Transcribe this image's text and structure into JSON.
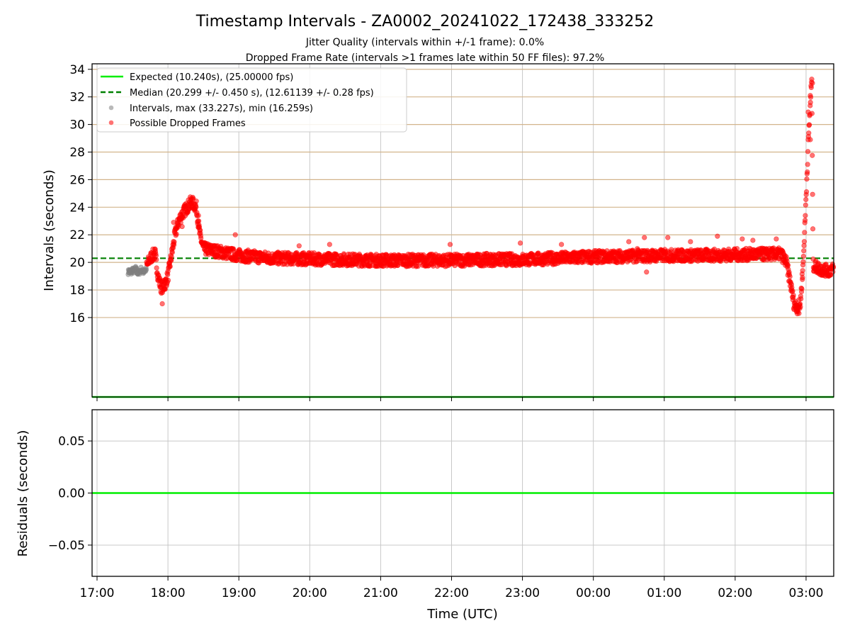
{
  "title": "Timestamp Intervals - ZA0002_20241022_172438_333252",
  "subtitle_1": "Jitter Quality (intervals within +/-1 frame): 0.0%",
  "subtitle_2": "Dropped Frame Rate (intervals >1 frames late within 50 FF files): 97.2%",
  "colors": {
    "expected": "#00ee00",
    "median": "#008000",
    "intervals": "#808080",
    "dropped": "#ff0000",
    "h_grid_top": "#d2b48c",
    "grid": "#c8c8c8"
  },
  "chart_data": [
    {
      "type": "scatter",
      "ylabel": "Intervals (seconds)",
      "x_unit": "hours after 17:00 UTC",
      "xlim": [
        -0.07,
        10.39
      ],
      "ylim": [
        10.24,
        34.4
      ],
      "yticks": [
        16,
        18,
        20,
        22,
        24,
        26,
        28,
        30,
        32,
        34
      ],
      "grid": "horizontal tan + vertical grey",
      "legend_position": "top-left",
      "expected_value": 10.24,
      "median_value": 20.299,
      "legend": [
        "Expected (10.240s), (25.00000 fps)",
        "Median (20.299 +/- 0.450 s), (12.61139 +/- 0.28 fps)",
        "Intervals, max (33.227s), min (16.259s)",
        "Possible Dropped Frames"
      ],
      "intervals_gray": [
        [
          0.44,
          19.3
        ],
        [
          0.46,
          19.4
        ],
        [
          0.48,
          19.2
        ],
        [
          0.5,
          19.5
        ],
        [
          0.52,
          19.3
        ],
        [
          0.55,
          19.6
        ],
        [
          0.57,
          19.2
        ],
        [
          0.6,
          19.3
        ],
        [
          0.62,
          19.5
        ],
        [
          0.65,
          19.3
        ],
        [
          0.67,
          19.4
        ],
        [
          0.7,
          19.5
        ]
      ],
      "dropped_trend": [
        [
          0.7,
          19.7
        ],
        [
          0.74,
          20.2
        ],
        [
          0.78,
          20.5
        ],
        [
          0.82,
          20.6
        ],
        [
          0.86,
          19.0
        ],
        [
          0.9,
          18.2
        ],
        [
          0.95,
          18.3
        ],
        [
          1.0,
          19.0
        ],
        [
          1.05,
          20.5
        ],
        [
          1.1,
          22.0
        ],
        [
          1.15,
          23.0
        ],
        [
          1.2,
          23.5
        ],
        [
          1.27,
          24.0
        ],
        [
          1.33,
          24.4
        ],
        [
          1.4,
          24.0
        ],
        [
          1.45,
          22.0
        ],
        [
          1.5,
          21.0
        ],
        [
          1.6,
          20.9
        ],
        [
          1.7,
          20.8
        ],
        [
          1.8,
          20.7
        ],
        [
          1.9,
          20.6
        ],
        [
          2.0,
          20.5
        ],
        [
          2.5,
          20.3
        ],
        [
          3.0,
          20.25
        ],
        [
          3.5,
          20.2
        ],
        [
          4.0,
          20.15
        ],
        [
          4.5,
          20.15
        ],
        [
          5.0,
          20.15
        ],
        [
          5.5,
          20.2
        ],
        [
          6.0,
          20.2
        ],
        [
          6.5,
          20.3
        ],
        [
          7.0,
          20.4
        ],
        [
          7.5,
          20.45
        ],
        [
          8.0,
          20.5
        ],
        [
          8.5,
          20.5
        ],
        [
          9.0,
          20.55
        ],
        [
          9.5,
          20.6
        ],
        [
          9.65,
          20.6
        ],
        [
          9.72,
          20.0
        ],
        [
          9.78,
          18.5
        ],
        [
          9.83,
          17.0
        ],
        [
          9.88,
          16.7
        ],
        [
          9.92,
          17.0
        ],
        [
          9.96,
          20.0
        ],
        [
          9.99,
          23.5
        ],
        [
          10.01,
          26.0
        ],
        [
          10.03,
          28.5
        ],
        [
          10.05,
          30.5
        ],
        [
          10.07,
          32.5
        ],
        [
          10.08,
          33.2
        ],
        [
          10.1,
          19.8
        ],
        [
          10.2,
          19.5
        ],
        [
          10.3,
          19.4
        ],
        [
          10.39,
          19.5
        ]
      ],
      "dropped_outliers": [
        [
          0.92,
          17.0
        ],
        [
          1.08,
          22.9
        ],
        [
          1.2,
          22.6
        ],
        [
          1.43,
          23.4
        ],
        [
          1.44,
          22.6
        ],
        [
          1.95,
          22.0
        ],
        [
          2.85,
          21.2
        ],
        [
          3.28,
          21.3
        ],
        [
          4.98,
          21.3
        ],
        [
          5.97,
          21.4
        ],
        [
          6.55,
          21.3
        ],
        [
          7.5,
          21.5
        ],
        [
          7.62,
          21.0
        ],
        [
          7.72,
          21.8
        ],
        [
          7.75,
          19.3
        ],
        [
          8.05,
          21.8
        ],
        [
          8.37,
          21.5
        ],
        [
          8.75,
          21.9
        ],
        [
          9.1,
          21.7
        ],
        [
          9.25,
          21.6
        ],
        [
          9.58,
          21.7
        ],
        [
          10.06,
          28.9
        ],
        [
          10.09,
          33.0
        ],
        [
          10.06,
          32.1
        ],
        [
          10.03,
          30.9
        ],
        [
          9.95,
          18.9
        ],
        [
          9.9,
          16.3
        ],
        [
          10.32,
          19.0
        ]
      ],
      "markers_seed": 7
    },
    {
      "type": "line",
      "ylabel": "Residuals (seconds)",
      "xlabel": "Time (UTC)",
      "x_unit": "hours after 17:00 UTC",
      "xlim": [
        -0.07,
        10.39
      ],
      "ylim": [
        -0.08,
        0.08
      ],
      "yticks": [
        0.05,
        0.0,
        -0.05
      ],
      "ytick_labels": [
        "0.05",
        "0.00",
        "−0.05"
      ],
      "grid": true,
      "residual_value": 0.0,
      "xticks": [
        0,
        1,
        2,
        3,
        4,
        5,
        6,
        7,
        8,
        9,
        10
      ],
      "xtick_labels": [
        "17:00",
        "18:00",
        "19:00",
        "20:00",
        "21:00",
        "22:00",
        "23:00",
        "00:00",
        "01:00",
        "02:00",
        "03:00"
      ]
    }
  ]
}
